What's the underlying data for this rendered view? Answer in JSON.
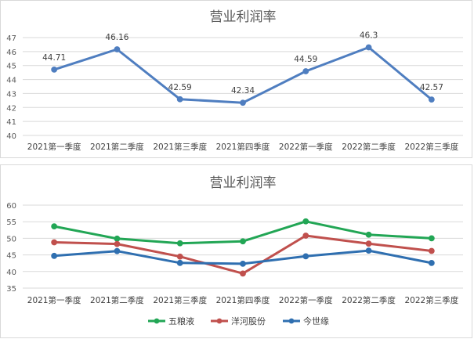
{
  "chart_data": [
    {
      "type": "line",
      "title": "营业利润率",
      "categories": [
        "2021第一季度",
        "2021第二季度",
        "2021第三季度",
        "2021第四季度",
        "2022第一季度",
        "2022第二季度",
        "2022第三季度"
      ],
      "series": [
        {
          "values": [
            44.71,
            46.16,
            42.59,
            42.34,
            44.59,
            46.3,
            42.57
          ],
          "color": "#4f7ec0",
          "data_labels": [
            "44.71",
            "46.16",
            "42.59",
            "42.34",
            "44.59",
            "46.3",
            "42.57"
          ]
        }
      ],
      "y_ticks": [
        "47",
        "46",
        "45",
        "44",
        "43",
        "42",
        "41",
        "40"
      ],
      "ylim": [
        40,
        47
      ],
      "grid": true,
      "legend": "none"
    },
    {
      "type": "line",
      "title": "营业利润率",
      "categories": [
        "2021第一季度",
        "2021第二季度",
        "2021第三季度",
        "2021第四季度",
        "2022第一季度",
        "2022第二季度",
        "2022第三季度"
      ],
      "series": [
        {
          "name": "五粮液",
          "values": [
            53.6,
            49.9,
            48.5,
            49.1,
            55.1,
            51.1,
            50.0
          ],
          "color": "#22a655"
        },
        {
          "name": "洋河股份",
          "values": [
            48.8,
            48.3,
            44.5,
            39.4,
            50.8,
            48.4,
            46.2
          ],
          "color": "#c0504d"
        },
        {
          "name": "今世缘",
          "values": [
            44.71,
            46.16,
            42.59,
            42.34,
            44.59,
            46.3,
            42.57
          ],
          "color": "#2f6fb0"
        }
      ],
      "y_ticks": [
        "60",
        "55",
        "50",
        "45",
        "40",
        "35"
      ],
      "ylim": [
        35,
        60
      ],
      "grid": true,
      "legend": "bottom"
    }
  ]
}
